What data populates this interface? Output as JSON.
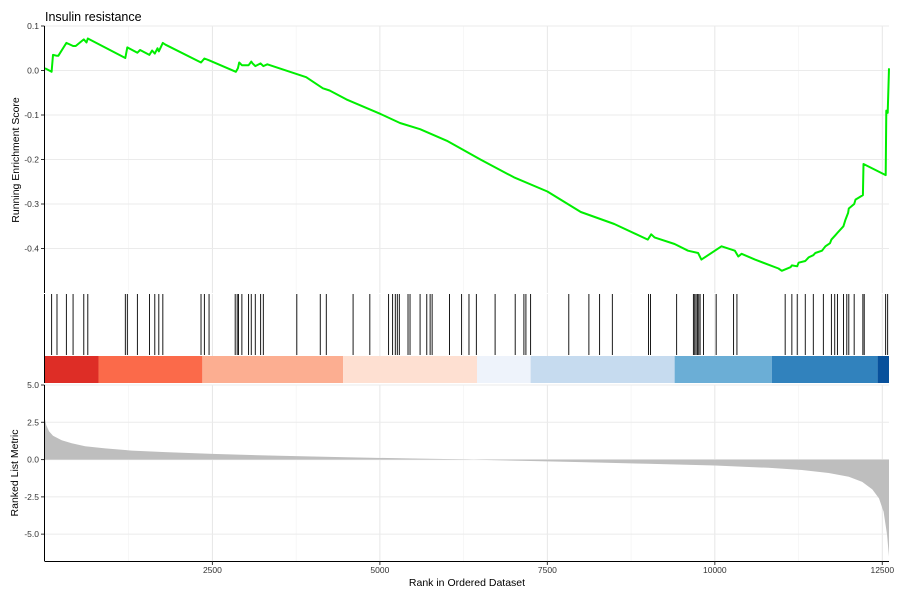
{
  "chart_data": {
    "type": "line",
    "title": "Insulin resistance",
    "xlabel": "Rank in Ordered Dataset",
    "xlim": [
      1,
      12600
    ],
    "x_ticks": [
      "2500",
      "5000",
      "7500",
      "10000",
      "12500"
    ],
    "x_tick_values": [
      2500,
      5000,
      7500,
      10000,
      12500
    ],
    "grid": true,
    "panels": {
      "enrichment": {
        "ylabel": "Running Enrichment Score",
        "ylim": [
          -0.5,
          0.1
        ],
        "y_ticks": [
          "0.1",
          "0.0",
          "-0.1",
          "-0.2",
          "-0.3",
          "-0.4"
        ],
        "y_tick_values": [
          0.1,
          0.0,
          -0.1,
          -0.2,
          -0.3,
          -0.4
        ],
        "line_color": "#00ee00",
        "series": [
          {
            "x": [
              1,
              100,
              120,
              180,
              200,
              320,
              420,
              460,
              580,
              620,
              640,
              1200,
              1230,
              1380,
              1420,
              1560,
              1600,
              1640,
              1680,
              1700,
              1760,
              1800,
              2330,
              2380,
              2450,
              2850,
              2880,
              2900,
              2940,
              3040,
              3080,
              3100,
              3140,
              3220,
              3260,
              3320,
              3900,
              4150,
              4250,
              4500,
              5000,
              5300,
              5600,
              6000,
              6500,
              7000,
              7500,
              8000,
              8500,
              9000,
              9050,
              9100,
              9400,
              9600,
              9750,
              9800,
              10100,
              10300,
              10350,
              10400,
              10600,
              10950,
              11000,
              11130,
              11150,
              11230,
              11250,
              11350,
              11400,
              11470,
              11500,
              11600,
              11650,
              11720,
              11740,
              11800,
              11830,
              11920,
              11950,
              11990,
              12000,
              12080,
              12100,
              12210,
              12220,
              12550,
              12560,
              12580,
              12600
            ],
            "y": [
              0.005,
              -0.003,
              0.035,
              0.033,
              0.033,
              0.062,
              0.055,
              0.055,
              0.07,
              0.063,
              0.072,
              0.028,
              0.052,
              0.04,
              0.046,
              0.035,
              0.045,
              0.038,
              0.05,
              0.043,
              0.062,
              0.058,
              0.018,
              0.027,
              0.023,
              -0.003,
              0.005,
              0.018,
              0.012,
              0.012,
              0.02,
              0.016,
              0.01,
              0.016,
              0.01,
              0.014,
              -0.015,
              -0.04,
              -0.045,
              -0.065,
              -0.097,
              -0.118,
              -0.132,
              -0.158,
              -0.2,
              -0.24,
              -0.272,
              -0.318,
              -0.345,
              -0.38,
              -0.368,
              -0.375,
              -0.39,
              -0.405,
              -0.41,
              -0.425,
              -0.395,
              -0.405,
              -0.418,
              -0.412,
              -0.425,
              -0.445,
              -0.45,
              -0.442,
              -0.438,
              -0.44,
              -0.432,
              -0.428,
              -0.42,
              -0.415,
              -0.41,
              -0.405,
              -0.395,
              -0.388,
              -0.38,
              -0.37,
              -0.365,
              -0.35,
              -0.335,
              -0.32,
              -0.31,
              -0.3,
              -0.29,
              -0.28,
              -0.21,
              -0.235,
              -0.09,
              -0.095,
              0.005
            ]
          }
        ]
      },
      "gene_hits": {
        "positions": [
          100,
          180,
          320,
          420,
          580,
          640,
          1200,
          1230,
          1380,
          1560,
          1640,
          1700,
          1760,
          2330,
          2380,
          2450,
          2840,
          2870,
          2890,
          2940,
          3040,
          3080,
          3140,
          3220,
          3260,
          3760,
          4110,
          4200,
          4600,
          4850,
          5130,
          5190,
          5230,
          5260,
          5290,
          5420,
          5450,
          5600,
          5700,
          5750,
          5780,
          6040,
          6220,
          6330,
          6440,
          6720,
          7020,
          7150,
          7180,
          7250,
          7820,
          8120,
          8280,
          8470,
          9010,
          9040,
          9430,
          9680,
          9700,
          9720,
          9740,
          9760,
          9780,
          9830,
          10020,
          10280,
          10330,
          11050,
          11150,
          11230,
          11350,
          11470,
          11620,
          11740,
          11790,
          11830,
          11920,
          11970,
          12000,
          12080,
          12210,
          12230,
          12550,
          12580
        ]
      },
      "color_bar": {
        "segments": [
          {
            "from": 0,
            "to": 800,
            "color": "#de2d26"
          },
          {
            "from": 800,
            "to": 2350,
            "color": "#fb6a4a"
          },
          {
            "from": 2350,
            "to": 4450,
            "color": "#fcae91"
          },
          {
            "from": 4450,
            "to": 6450,
            "color": "#fee0d2"
          },
          {
            "from": 6450,
            "to": 7250,
            "color": "#eef3fb"
          },
          {
            "from": 7250,
            "to": 9400,
            "color": "#c6dbef"
          },
          {
            "from": 9400,
            "to": 10850,
            "color": "#6baed6"
          },
          {
            "from": 10850,
            "to": 12430,
            "color": "#3182bd"
          },
          {
            "from": 12430,
            "to": 12600,
            "color": "#08519c"
          }
        ]
      },
      "ranked_metric": {
        "ylabel": "Ranked List Metric",
        "ylim": [
          -6.8,
          5.0
        ],
        "y_ticks": [
          "5.0",
          "2.5",
          "0.0",
          "-2.5",
          "-5.0"
        ],
        "y_tick_values": [
          5.0,
          2.5,
          0.0,
          -2.5,
          -5.0
        ],
        "fill_color": "#bebebe",
        "series": [
          {
            "x": [
              1,
              20,
              60,
              120,
              250,
              400,
              600,
              900,
              1300,
              1800,
              2500,
              3500,
              4500,
              5500,
              6300,
              6500,
              7000,
              8000,
              9000,
              10000,
              10800,
              11300,
              11700,
              12000,
              12200,
              12350,
              12450,
              12520,
              12570,
              12600
            ],
            "y": [
              2.7,
              2.3,
              1.9,
              1.6,
              1.3,
              1.1,
              0.9,
              0.75,
              0.6,
              0.5,
              0.38,
              0.25,
              0.15,
              0.07,
              0.01,
              -0.02,
              -0.07,
              -0.17,
              -0.28,
              -0.4,
              -0.55,
              -0.7,
              -0.9,
              -1.15,
              -1.5,
              -2.0,
              -2.6,
              -3.5,
              -5.0,
              -6.5
            ]
          }
        ]
      }
    }
  }
}
